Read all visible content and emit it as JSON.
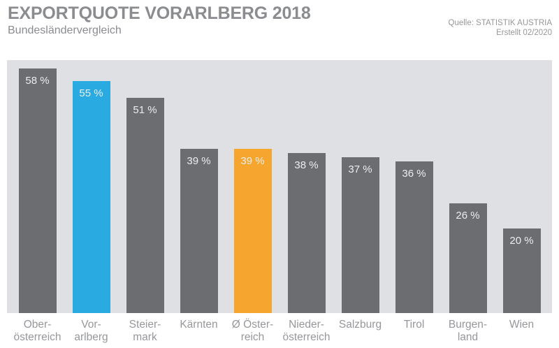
{
  "header": {
    "title": "EXPORTQUOTE VORARLBERG 2018",
    "subtitle": "Bundesländervergleich",
    "source_line1": "Quelle: STATISTIK AUSTRIA",
    "source_line2": "Erstellt 02/2020"
  },
  "colors": {
    "bar_default": "#6c6d70",
    "bar_highlight_blue": "#29abe2",
    "bar_highlight_orange": "#f6a62f",
    "plot_background": "#dfe0e3",
    "title_text": "#8b8c8f",
    "axis_label_text": "#96979b",
    "value_label_text": "#eceded"
  },
  "chart_data": {
    "type": "bar",
    "title": "EXPORTQUOTE VORARLBERG 2018",
    "subtitle": "Bundesländervergleich",
    "xlabel": "",
    "ylabel": "",
    "ylim": [
      0,
      60
    ],
    "grid": false,
    "legend": false,
    "categories": [
      "Oberösterreich",
      "Vorarlberg",
      "Steiermark",
      "Kärnten",
      "Ø Österreich",
      "Niederösterreich",
      "Salzburg",
      "Tirol",
      "Burgenland",
      "Wien"
    ],
    "values": [
      58,
      55,
      51,
      39,
      39,
      38,
      37,
      36,
      26,
      20
    ],
    "bars": [
      {
        "id": "oberoesterreich",
        "name": "Oberösterreich",
        "label_lines": [
          "Ober-",
          "österreich"
        ],
        "value": 58,
        "label": "58 %",
        "color": "#6c6d70"
      },
      {
        "id": "vorarlberg",
        "name": "Vorarlberg",
        "label_lines": [
          "Vor-",
          "arlberg"
        ],
        "value": 55,
        "label": "55 %",
        "color": "#29abe2"
      },
      {
        "id": "steiermark",
        "name": "Steiermark",
        "label_lines": [
          "Steier-",
          "mark"
        ],
        "value": 51,
        "label": "51 %",
        "color": "#6c6d70"
      },
      {
        "id": "kaernten",
        "name": "Kärnten",
        "label_lines": [
          "Kärnten"
        ],
        "value": 39,
        "label": "39 %",
        "color": "#6c6d70"
      },
      {
        "id": "oesterreich-avg",
        "name": "Ø Österreich",
        "label_lines": [
          "Ø Öster-",
          "reich"
        ],
        "value": 39,
        "label": "39 %",
        "color": "#f6a62f"
      },
      {
        "id": "niederoesterreich",
        "name": "Niederösterreich",
        "label_lines": [
          "Nieder-",
          "österreich"
        ],
        "value": 38,
        "label": "38 %",
        "color": "#6c6d70"
      },
      {
        "id": "salzburg",
        "name": "Salzburg",
        "label_lines": [
          "Salzburg"
        ],
        "value": 37,
        "label": "37 %",
        "color": "#6c6d70"
      },
      {
        "id": "tirol",
        "name": "Tirol",
        "label_lines": [
          "Tirol"
        ],
        "value": 36,
        "label": "36 %",
        "color": "#6c6d70"
      },
      {
        "id": "burgenland",
        "name": "Burgenland",
        "label_lines": [
          "Burgen-",
          "land"
        ],
        "value": 26,
        "label": "26 %",
        "color": "#6c6d70"
      },
      {
        "id": "wien",
        "name": "Wien",
        "label_lines": [
          "Wien"
        ],
        "value": 20,
        "label": "20 %",
        "color": "#6c6d70"
      }
    ]
  }
}
